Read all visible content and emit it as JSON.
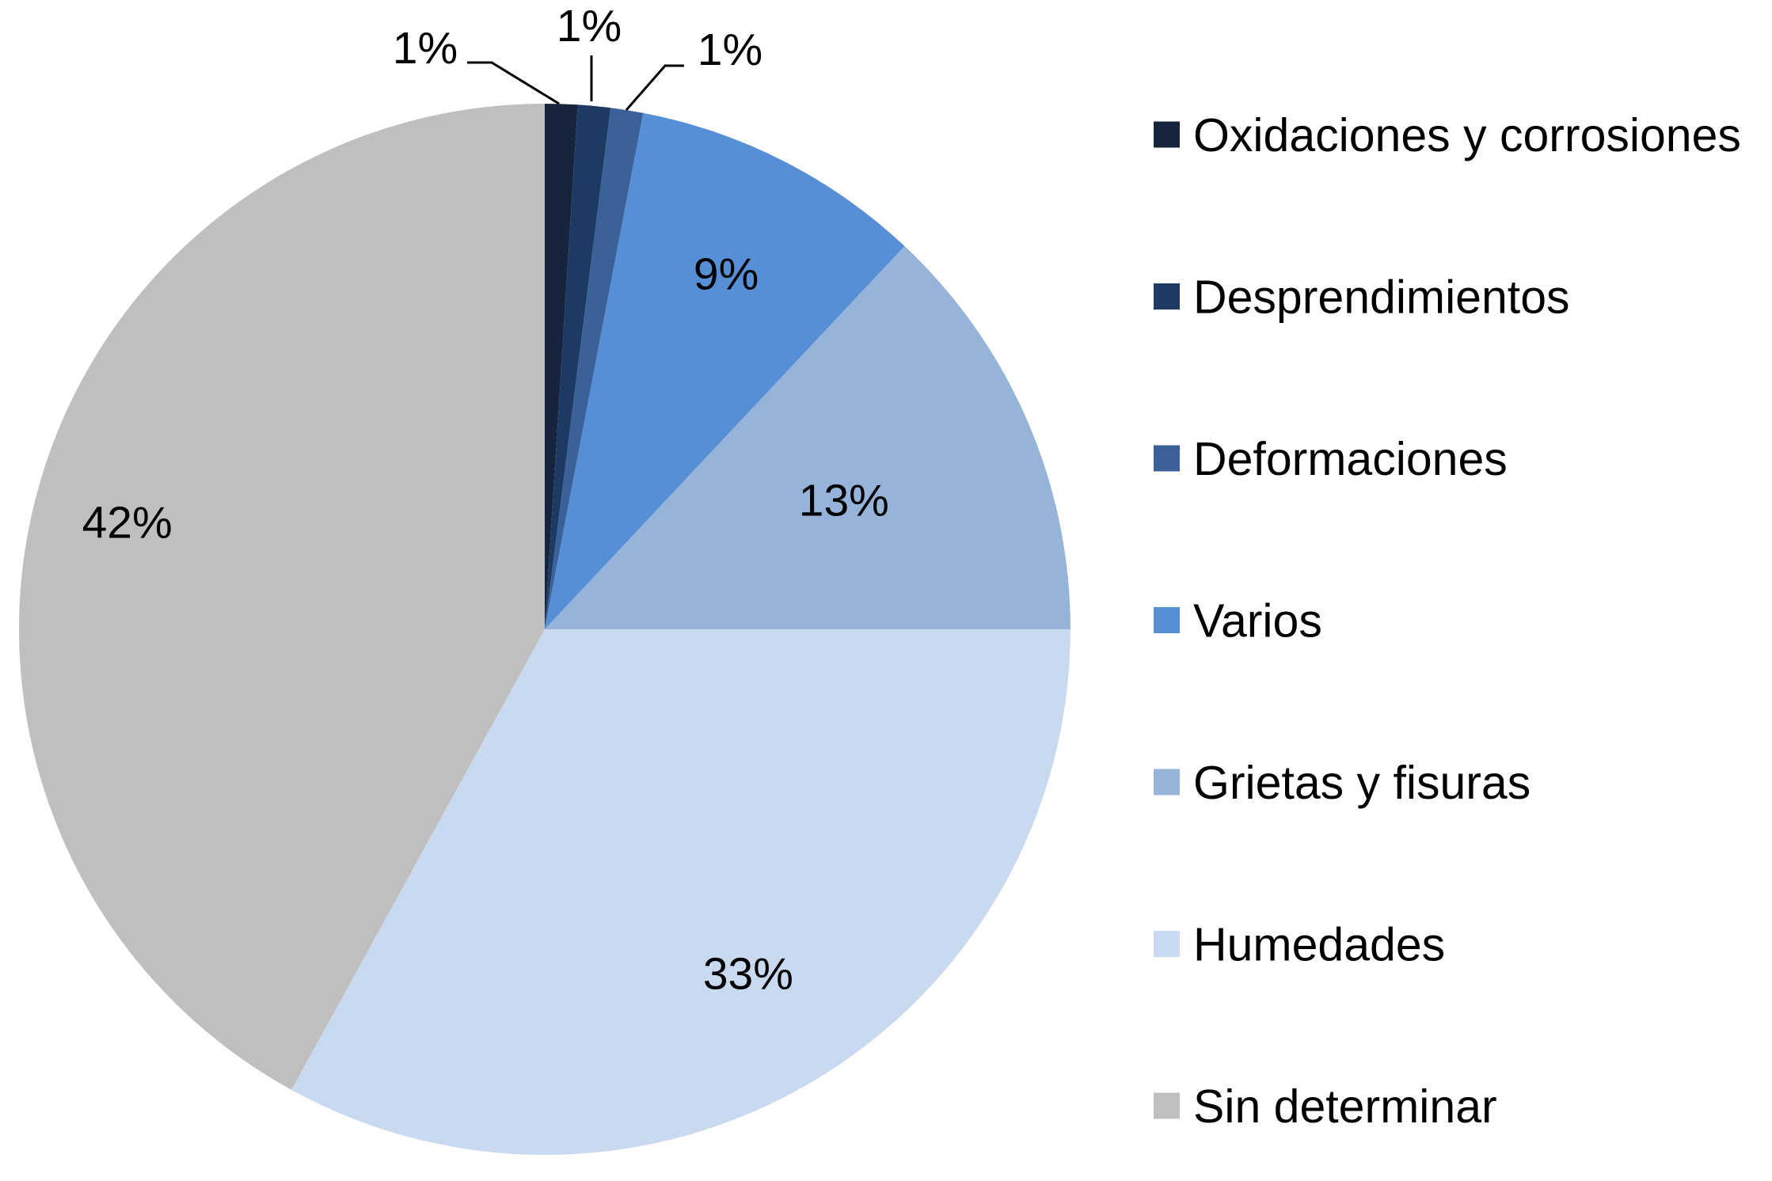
{
  "chart_data": {
    "type": "pie",
    "title": "",
    "start_angle_deg": 0,
    "direction": "clockwise",
    "legend_position": "right",
    "slices": [
      {
        "label": "Oxidaciones y corrosiones",
        "value": 1,
        "value_label": "1%",
        "color": "#16243e"
      },
      {
        "label": "Desprendimientos",
        "value": 1,
        "value_label": "1%",
        "color": "#1d3a63"
      },
      {
        "label": "Deformaciones",
        "value": 1,
        "value_label": "1%",
        "color": "#3a6299"
      },
      {
        "label": "Varios",
        "value": 9,
        "value_label": "9%",
        "color": "#578fd6"
      },
      {
        "label": "Grietas y fisuras",
        "value": 13,
        "value_label": "13%",
        "color": "#96b3d9"
      },
      {
        "label": "Humedades",
        "value": 33,
        "value_label": "33%",
        "color": "#c8d9f0"
      },
      {
        "label": "Sin determinar",
        "value": 42,
        "value_label": "42%",
        "color": "#bfbfbf"
      }
    ]
  }
}
